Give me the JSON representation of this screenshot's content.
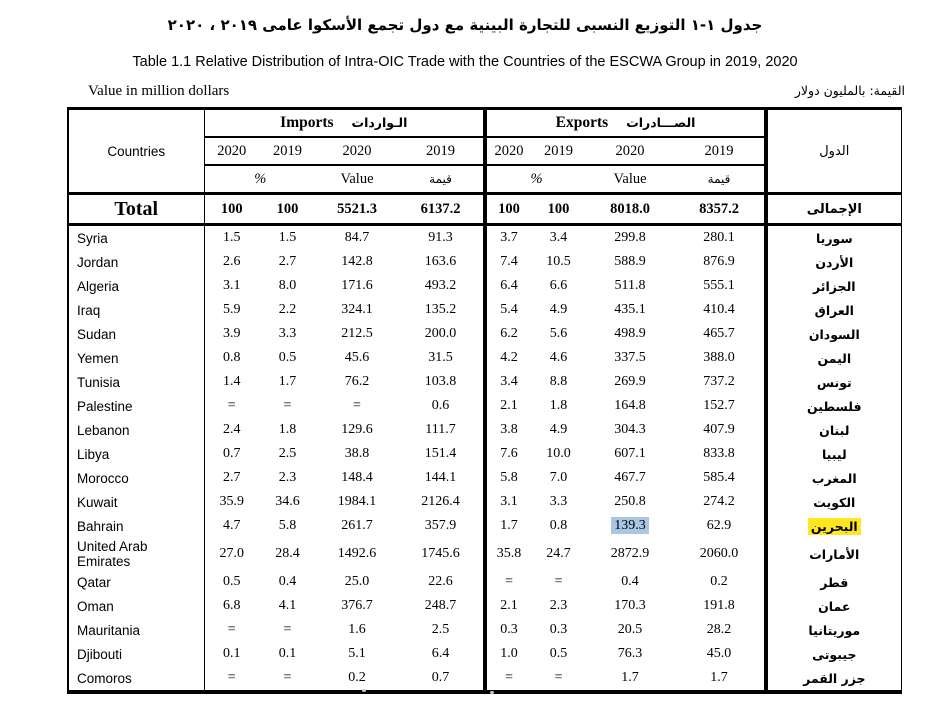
{
  "page": {
    "title_ar": "جدول ١-١ التوزيع النسبى للتجارة البينية مع دول تجمع الأسكوا عامى ٢٠١٩ ، ٢٠٢٠",
    "title_en": "Table 1.1 Relative Distribution of Intra-OIC Trade with the Countries of the ESCWA Group in 2019, 2020",
    "unit_note_en": "Value in million dollars",
    "unit_note_ar": "القيمة: بالمليون دولار"
  },
  "colors": {
    "value_highlight_blue": "#a9c6e3",
    "name_highlight_yellow": "#ffe61e",
    "line_black": "#000000"
  },
  "table": {
    "countries_label": "Countries",
    "dol_label": "الدول",
    "imports_label_en": "Imports",
    "imports_label_ar": "الـواردات",
    "exports_label_en": "Exports",
    "exports_label_ar": "الصـــادرات",
    "years": [
      "2020",
      "2019",
      "2020",
      "2019"
    ],
    "pct_label": "%",
    "value_label_en": "Value",
    "value_label_ar": "قيمة",
    "total": {
      "en": "Total",
      "ar": "الإجمالى",
      "imports": [
        "100",
        "100",
        "5521.3",
        "6137.2"
      ],
      "exports": [
        "100",
        "100",
        "8018.0",
        "8357.2"
      ]
    },
    "rows": [
      {
        "en": "Syria",
        "ar": "سوريا",
        "imp": [
          "1.5",
          "1.5",
          "84.7",
          "91.3"
        ],
        "exp": [
          "3.7",
          "3.4",
          "299.8",
          "280.1"
        ]
      },
      {
        "en": "Jordan",
        "ar": "الأردن",
        "imp": [
          "2.6",
          "2.7",
          "142.8",
          "163.6"
        ],
        "exp": [
          "7.4",
          "10.5",
          "588.9",
          "876.9"
        ]
      },
      {
        "en": "Algeria",
        "ar": "الجزائر",
        "imp": [
          "3.1",
          "8.0",
          "171.6",
          "493.2"
        ],
        "exp": [
          "6.4",
          "6.6",
          "511.8",
          "555.1"
        ]
      },
      {
        "en": "Iraq",
        "ar": "العراق",
        "imp": [
          "5.9",
          "2.2",
          "324.1",
          "135.2"
        ],
        "exp": [
          "5.4",
          "4.9",
          "435.1",
          "410.4"
        ]
      },
      {
        "en": "Sudan",
        "ar": "السودان",
        "imp": [
          "3.9",
          "3.3",
          "212.5",
          "200.0"
        ],
        "exp": [
          "6.2",
          "5.6",
          "498.9",
          "465.7"
        ]
      },
      {
        "en": "Yemen",
        "ar": "اليمن",
        "imp": [
          "0.8",
          "0.5",
          "45.6",
          "31.5"
        ],
        "exp": [
          "4.2",
          "4.6",
          "337.5",
          "388.0"
        ]
      },
      {
        "en": "Tunisia",
        "ar": "تونس",
        "imp": [
          "1.4",
          "1.7",
          "76.2",
          "103.8"
        ],
        "exp": [
          "3.4",
          "8.8",
          "269.9",
          "737.2"
        ]
      },
      {
        "en": "Palestine",
        "ar": "فلسطين",
        "imp": [
          "=",
          "=",
          "=",
          "0.6"
        ],
        "exp": [
          "2.1",
          "1.8",
          "164.8",
          "152.7"
        ]
      },
      {
        "en": "Lebanon",
        "ar": "لبنان",
        "imp": [
          "2.4",
          "1.8",
          "129.6",
          "111.7"
        ],
        "exp": [
          "3.8",
          "4.9",
          "304.3",
          "407.9"
        ]
      },
      {
        "en": "Libya",
        "ar": "ليبيا",
        "imp": [
          "0.7",
          "2.5",
          "38.8",
          "151.4"
        ],
        "exp": [
          "7.6",
          "10.0",
          "607.1",
          "833.8"
        ]
      },
      {
        "en": "Morocco",
        "ar": "المغرب",
        "imp": [
          "2.7",
          "2.3",
          "148.4",
          "144.1"
        ],
        "exp": [
          "5.8",
          "7.0",
          "467.7",
          "585.4"
        ]
      },
      {
        "en": "Kuwait",
        "ar": "الكويت",
        "imp": [
          "35.9",
          "34.6",
          "1984.1",
          "2126.4"
        ],
        "exp": [
          "3.1",
          "3.3",
          "250.8",
          "274.2"
        ]
      },
      {
        "en": "Bahrain",
        "ar": "البحرين",
        "imp": [
          "4.7",
          "5.8",
          "261.7",
          "357.9"
        ],
        "exp": [
          "1.7",
          "0.8",
          "139.3",
          "62.9"
        ],
        "hl": {
          "exp_index": 2,
          "ar": true
        }
      },
      {
        "en": "United Arab Emirates",
        "ar": "الأمارات",
        "imp": [
          "27.0",
          "28.4",
          "1492.6",
          "1745.6"
        ],
        "exp": [
          "35.8",
          "24.7",
          "2872.9",
          "2060.0"
        ],
        "tall": true
      },
      {
        "en": "Qatar",
        "ar": "قطر",
        "imp": [
          "0.5",
          "0.4",
          "25.0",
          "22.6"
        ],
        "exp": [
          "=",
          "=",
          "0.4",
          "0.2"
        ]
      },
      {
        "en": "Oman",
        "ar": "عمان",
        "imp": [
          "6.8",
          "4.1",
          "376.7",
          "248.7"
        ],
        "exp": [
          "2.1",
          "2.3",
          "170.3",
          "191.8"
        ]
      },
      {
        "en": "Mauritania",
        "ar": "موريتانيا",
        "imp": [
          "=",
          "=",
          "1.6",
          "2.5"
        ],
        "exp": [
          "0.3",
          "0.3",
          "20.5",
          "28.2"
        ]
      },
      {
        "en": "Djibouti",
        "ar": "جيبوتى",
        "imp": [
          "0.1",
          "0.1",
          "5.1",
          "6.4"
        ],
        "exp": [
          "1.0",
          "0.5",
          "76.3",
          "45.0"
        ]
      },
      {
        "en": "Comoros",
        "ar": "جزر القمر",
        "imp": [
          "=",
          "=",
          "0.2",
          "0.7"
        ],
        "exp": [
          "=",
          "=",
          "1.7",
          "1.7"
        ]
      }
    ]
  }
}
